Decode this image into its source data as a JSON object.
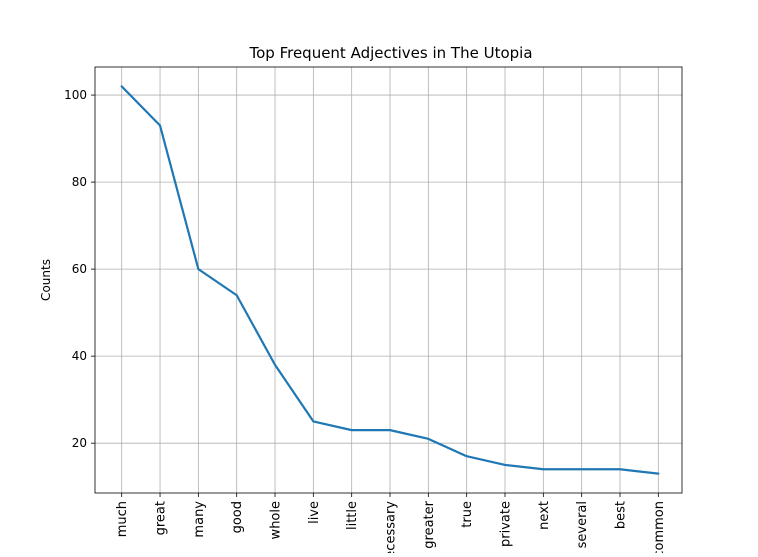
{
  "chart_data": {
    "type": "line",
    "title": "Top Frequent Adjectives in The Utopia",
    "xlabel": "",
    "ylabel": "Counts",
    "categories": [
      "much",
      "great",
      "many",
      "good",
      "whole",
      "live",
      "little",
      "necessary",
      "greater",
      "true",
      "private",
      "next",
      "several",
      "best",
      "common"
    ],
    "series": [
      {
        "values": [
          102,
          93,
          60,
          54,
          38,
          25,
          23,
          23,
          21,
          17,
          15,
          14,
          14,
          14,
          13
        ],
        "color": "#1f77b4"
      }
    ],
    "ylim": [
      8.55,
      106.45
    ],
    "yticks": [
      20,
      40,
      60,
      80,
      100
    ],
    "grid": true,
    "legend": "none"
  }
}
